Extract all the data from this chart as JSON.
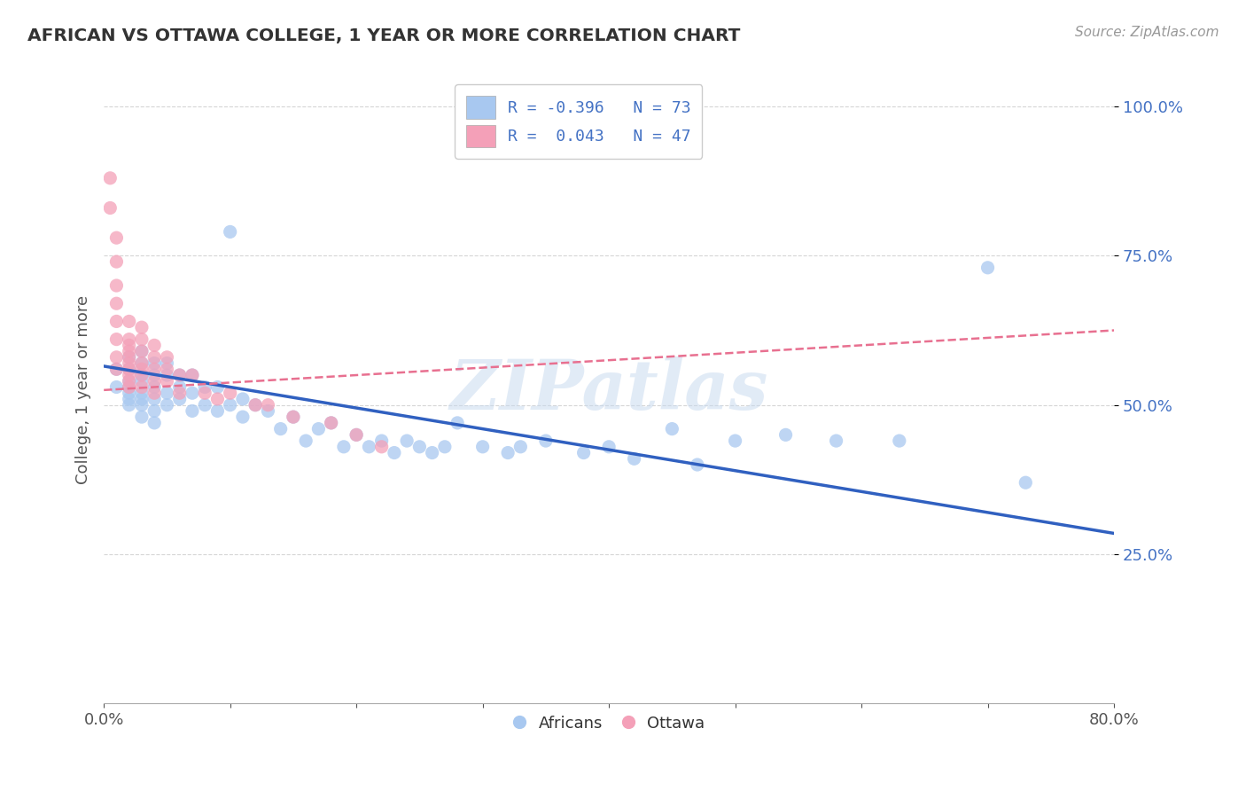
{
  "title": "AFRICAN VS OTTAWA COLLEGE, 1 YEAR OR MORE CORRELATION CHART",
  "source_text": "Source: ZipAtlas.com",
  "ylabel": "College, 1 year or more",
  "xlim": [
    0.0,
    0.8
  ],
  "ylim": [
    0.0,
    1.05
  ],
  "color_blue": "#A8C8F0",
  "color_pink": "#F4A0B8",
  "trendline_blue": "#3060C0",
  "trendline_pink": "#E87090",
  "background_color": "#FFFFFF",
  "grid_color": "#CCCCCC",
  "watermark_text": "ZIPatlas",
  "legend_label1": "R = -0.396   N = 73",
  "legend_label2": "R =  0.043   N = 47",
  "legend_series1": "Africans",
  "legend_series2": "Ottawa",
  "africans_x": [
    0.01,
    0.01,
    0.02,
    0.02,
    0.02,
    0.02,
    0.02,
    0.02,
    0.02,
    0.03,
    0.03,
    0.03,
    0.03,
    0.03,
    0.03,
    0.03,
    0.03,
    0.04,
    0.04,
    0.04,
    0.04,
    0.04,
    0.04,
    0.05,
    0.05,
    0.05,
    0.05,
    0.06,
    0.06,
    0.06,
    0.07,
    0.07,
    0.07,
    0.08,
    0.08,
    0.09,
    0.09,
    0.1,
    0.1,
    0.11,
    0.11,
    0.12,
    0.13,
    0.14,
    0.15,
    0.16,
    0.17,
    0.18,
    0.19,
    0.2,
    0.21,
    0.22,
    0.23,
    0.24,
    0.25,
    0.26,
    0.27,
    0.28,
    0.3,
    0.32,
    0.33,
    0.35,
    0.38,
    0.4,
    0.42,
    0.45,
    0.47,
    0.5,
    0.54,
    0.58,
    0.63,
    0.7,
    0.73
  ],
  "africans_y": [
    0.56,
    0.53,
    0.58,
    0.56,
    0.54,
    0.53,
    0.52,
    0.51,
    0.5,
    0.59,
    0.57,
    0.55,
    0.54,
    0.52,
    0.51,
    0.5,
    0.48,
    0.57,
    0.55,
    0.53,
    0.51,
    0.49,
    0.47,
    0.57,
    0.55,
    0.52,
    0.5,
    0.55,
    0.53,
    0.51,
    0.55,
    0.52,
    0.49,
    0.53,
    0.5,
    0.53,
    0.49,
    0.79,
    0.5,
    0.51,
    0.48,
    0.5,
    0.49,
    0.46,
    0.48,
    0.44,
    0.46,
    0.47,
    0.43,
    0.45,
    0.43,
    0.44,
    0.42,
    0.44,
    0.43,
    0.42,
    0.43,
    0.47,
    0.43,
    0.42,
    0.43,
    0.44,
    0.42,
    0.43,
    0.41,
    0.46,
    0.4,
    0.44,
    0.45,
    0.44,
    0.44,
    0.73,
    0.37
  ],
  "ottawa_x": [
    0.005,
    0.005,
    0.01,
    0.01,
    0.01,
    0.01,
    0.01,
    0.01,
    0.01,
    0.01,
    0.02,
    0.02,
    0.02,
    0.02,
    0.02,
    0.02,
    0.02,
    0.02,
    0.02,
    0.02,
    0.03,
    0.03,
    0.03,
    0.03,
    0.03,
    0.03,
    0.03,
    0.04,
    0.04,
    0.04,
    0.04,
    0.04,
    0.05,
    0.05,
    0.05,
    0.06,
    0.06,
    0.07,
    0.08,
    0.09,
    0.1,
    0.12,
    0.13,
    0.15,
    0.18,
    0.2,
    0.22
  ],
  "ottawa_y": [
    0.88,
    0.83,
    0.78,
    0.74,
    0.7,
    0.67,
    0.64,
    0.61,
    0.58,
    0.56,
    0.64,
    0.61,
    0.6,
    0.59,
    0.58,
    0.57,
    0.56,
    0.55,
    0.54,
    0.53,
    0.63,
    0.61,
    0.59,
    0.57,
    0.56,
    0.55,
    0.53,
    0.6,
    0.58,
    0.56,
    0.54,
    0.52,
    0.58,
    0.56,
    0.54,
    0.55,
    0.52,
    0.55,
    0.52,
    0.51,
    0.52,
    0.5,
    0.5,
    0.48,
    0.47,
    0.45,
    0.43
  ],
  "trendline_africans_x0": 0.0,
  "trendline_africans_y0": 0.565,
  "trendline_africans_x1": 0.8,
  "trendline_africans_y1": 0.285,
  "trendline_ottawa_x0": 0.0,
  "trendline_ottawa_y0": 0.525,
  "trendline_ottawa_x1": 0.8,
  "trendline_ottawa_y1": 0.625
}
